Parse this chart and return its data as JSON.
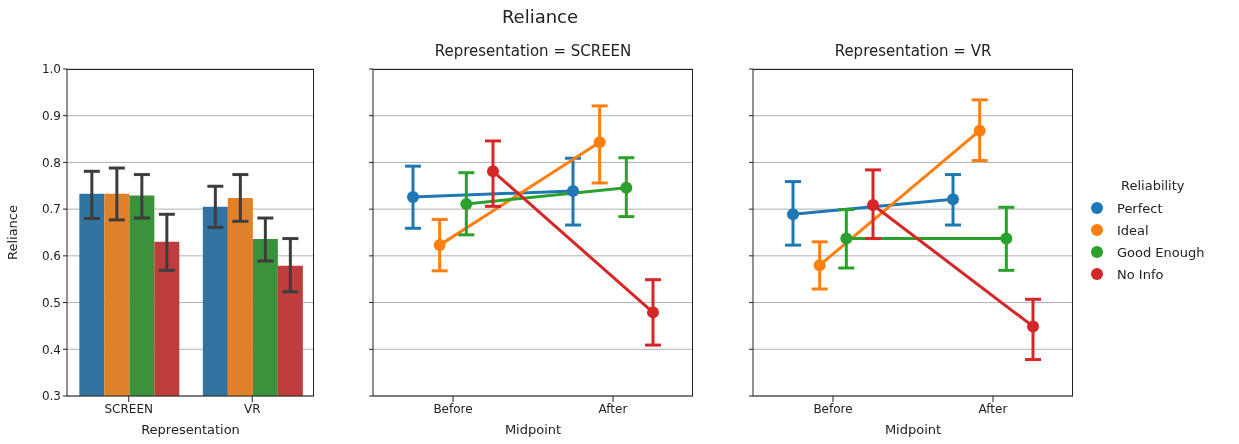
{
  "chart_data": [
    {
      "type": "bar",
      "annotations": [
        "Reliance"
      ],
      "xlabel": "Representation",
      "ylabel": "Reliance",
      "categories": [
        "SCREEN",
        "VR"
      ],
      "series": [
        {
          "color": "#3274a1",
          "values": [
            0.733,
            0.705
          ],
          "errors": [
            [
              0.68,
              0.781
            ],
            [
              0.661,
              0.749
            ]
          ]
        },
        {
          "color": "#e1812c",
          "values": [
            0.733,
            0.724
          ],
          "errors": [
            [
              0.677,
              0.788
            ],
            [
              0.674,
              0.774
            ]
          ]
        },
        {
          "color": "#3a923a",
          "values": [
            0.729,
            0.636
          ],
          "errors": [
            [
              0.681,
              0.774
            ],
            [
              0.589,
              0.681
            ]
          ]
        },
        {
          "color": "#c03d3e",
          "values": [
            0.63,
            0.579
          ],
          "errors": [
            [
              0.569,
              0.689
            ],
            [
              0.523,
              0.637
            ]
          ]
        }
      ],
      "ylim": [
        0.3,
        1.0
      ],
      "yticks": [
        {
          "value": 0.3,
          "label": "0.3"
        },
        {
          "value": 0.4,
          "label": "0.4"
        },
        {
          "value": 0.5,
          "label": "0.5"
        },
        {
          "value": 0.6,
          "label": "0.6"
        },
        {
          "value": 0.7,
          "label": "0.7"
        },
        {
          "value": 0.8,
          "label": "0.8"
        },
        {
          "value": 0.9,
          "label": "0.9"
        },
        {
          "value": 1.0,
          "label": "1.0"
        }
      ],
      "grid": "y"
    },
    {
      "type": "line",
      "title": "Representation = SCREEN",
      "xlabel": "Midpoint",
      "categories": [
        "Before",
        "After"
      ],
      "marker": "circle",
      "series": [
        {
          "color": "#1f77b4",
          "values": [
            0.726,
            0.739
          ],
          "errors": [
            [
              0.659,
              0.792
            ],
            [
              0.666,
              0.809
            ]
          ]
        },
        {
          "color": "#ff7f0e",
          "values": [
            0.623,
            0.843
          ],
          "errors": [
            [
              0.568,
              0.678
            ],
            [
              0.756,
              0.921
            ]
          ]
        },
        {
          "color": "#2ca02c",
          "values": [
            0.711,
            0.746
          ],
          "errors": [
            [
              0.645,
              0.778
            ],
            [
              0.684,
              0.81
            ]
          ]
        },
        {
          "color": "#d62728",
          "values": [
            0.781,
            0.479
          ],
          "errors": [
            [
              0.706,
              0.846
            ],
            [
              0.409,
              0.549
            ]
          ]
        }
      ],
      "ylim": [
        0.3,
        1.0
      ],
      "yticks": [
        {
          "value": 0.3,
          "label": null
        },
        {
          "value": 0.4,
          "label": null
        },
        {
          "value": 0.5,
          "label": null
        },
        {
          "value": 0.6,
          "label": null
        },
        {
          "value": 0.7,
          "label": null
        },
        {
          "value": 0.8,
          "label": null
        },
        {
          "value": 0.9,
          "label": null
        },
        {
          "value": 1.0,
          "label": null
        }
      ],
      "tick_labels": "x",
      "grid": "y"
    },
    {
      "type": "line",
      "title": "Representation = VR",
      "xlabel": "Midpoint",
      "categories": [
        "Before",
        "After"
      ],
      "marker": "circle",
      "legend_title": "Reliability",
      "series": [
        {
          "name": "Perfect",
          "color": "#1f77b4",
          "values": [
            0.689,
            0.721
          ],
          "errors": [
            [
              0.623,
              0.759
            ],
            [
              0.666,
              0.774
            ]
          ]
        },
        {
          "name": "Ideal",
          "color": "#ff7f0e",
          "values": [
            0.58,
            0.868
          ],
          "errors": [
            [
              0.529,
              0.63
            ],
            [
              0.804,
              0.934
            ]
          ]
        },
        {
          "name": "Good Enough",
          "color": "#2ca02c",
          "values": [
            0.637,
            0.637
          ],
          "errors": [
            [
              0.574,
              0.699
            ],
            [
              0.569,
              0.704
            ]
          ]
        },
        {
          "name": "No Info",
          "color": "#d62728",
          "values": [
            0.709,
            0.449
          ],
          "errors": [
            [
              0.637,
              0.784
            ],
            [
              0.378,
              0.507
            ]
          ]
        }
      ],
      "ylim": [
        0.3,
        1.0
      ],
      "yticks": [
        {
          "value": 0.3,
          "label": null
        },
        {
          "value": 0.4,
          "label": null
        },
        {
          "value": 0.5,
          "label": null
        },
        {
          "value": 0.6,
          "label": null
        },
        {
          "value": 0.7,
          "label": null
        },
        {
          "value": 0.8,
          "label": null
        },
        {
          "value": 0.9,
          "label": null
        },
        {
          "value": 1.0,
          "label": null
        }
      ],
      "tick_labels": "x",
      "grid": "y",
      "legend": "right"
    }
  ]
}
